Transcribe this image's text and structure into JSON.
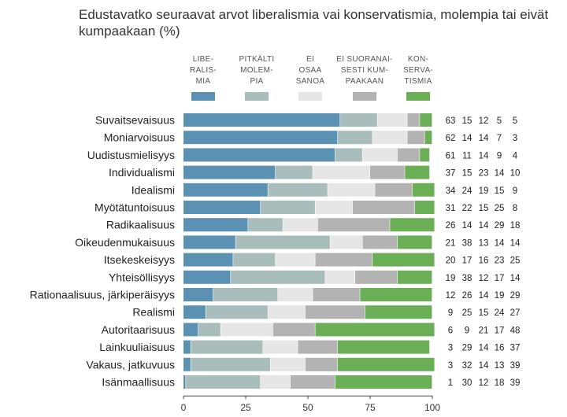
{
  "chart_data": {
    "type": "bar",
    "stacked": true,
    "orientation": "horizontal",
    "title": "Edustavatko seuraavat arvot liberalismia vai konservatismia, molempia tai eivät kumpaakaan (%)",
    "xlim": [
      0,
      100
    ],
    "xticks": [
      "0",
      "25",
      "50",
      "75",
      "100"
    ],
    "legend_position": "top",
    "categories": [
      "Suvaitsevaisuus",
      "Moniarvoisuus",
      "Uudistusmielisyys",
      "Individualismi",
      "Idealismi",
      "Myötätuntoisuus",
      "Radikaalisuus",
      "Oikeudenmukaisuus",
      "Itsekeskeisyys",
      "Yhteisöllisyys",
      "Rationaalisuus, järkiperäisyys",
      "Realismi",
      "Autoritaarisuus",
      "Lainkuuliaisuus",
      "Vakaus, jatkuvuus",
      "Isänmaallisuus"
    ],
    "series": [
      {
        "name": "LIBERALISMIA",
        "legend_lines": [
          "LIBE-",
          "RALIS-",
          "MIA"
        ],
        "color": "#5b91b3",
        "values": [
          63,
          62,
          61,
          37,
          34,
          31,
          26,
          21,
          20,
          19,
          12,
          9,
          6,
          3,
          3,
          1
        ]
      },
      {
        "name": "PITKÄLTI MOLEMPIA",
        "legend_lines": [
          "PITKÄLTI",
          "MOLEM-",
          "PIA"
        ],
        "color": "#a9bdbd",
        "values": [
          15,
          14,
          11,
          15,
          24,
          22,
          14,
          38,
          17,
          38,
          26,
          25,
          9,
          29,
          32,
          30
        ]
      },
      {
        "name": "EI OSAA SANOA",
        "legend_lines": [
          "EI",
          "OSAA",
          "SANOA"
        ],
        "color": "#e6e6e6",
        "values": [
          12,
          14,
          14,
          23,
          19,
          15,
          14,
          13,
          16,
          12,
          14,
          15,
          21,
          14,
          14,
          12
        ]
      },
      {
        "name": "EI SUORANAISESTI KUMPAAKAAN",
        "legend_lines": [
          "EI SUORANAI-",
          "SESTI KUM-",
          "PAAKAAN"
        ],
        "color": "#b3b3b3",
        "values": [
          5,
          7,
          9,
          14,
          15,
          25,
          29,
          14,
          23,
          17,
          19,
          24,
          17,
          16,
          13,
          18
        ]
      },
      {
        "name": "KONSERVATISMIA",
        "legend_lines": [
          "KON-",
          "SERVA-",
          "TISMIA"
        ],
        "color": "#6aae55",
        "values": [
          5,
          3,
          4,
          10,
          9,
          8,
          18,
          14,
          25,
          14,
          29,
          27,
          48,
          37,
          39,
          39
        ]
      }
    ]
  }
}
